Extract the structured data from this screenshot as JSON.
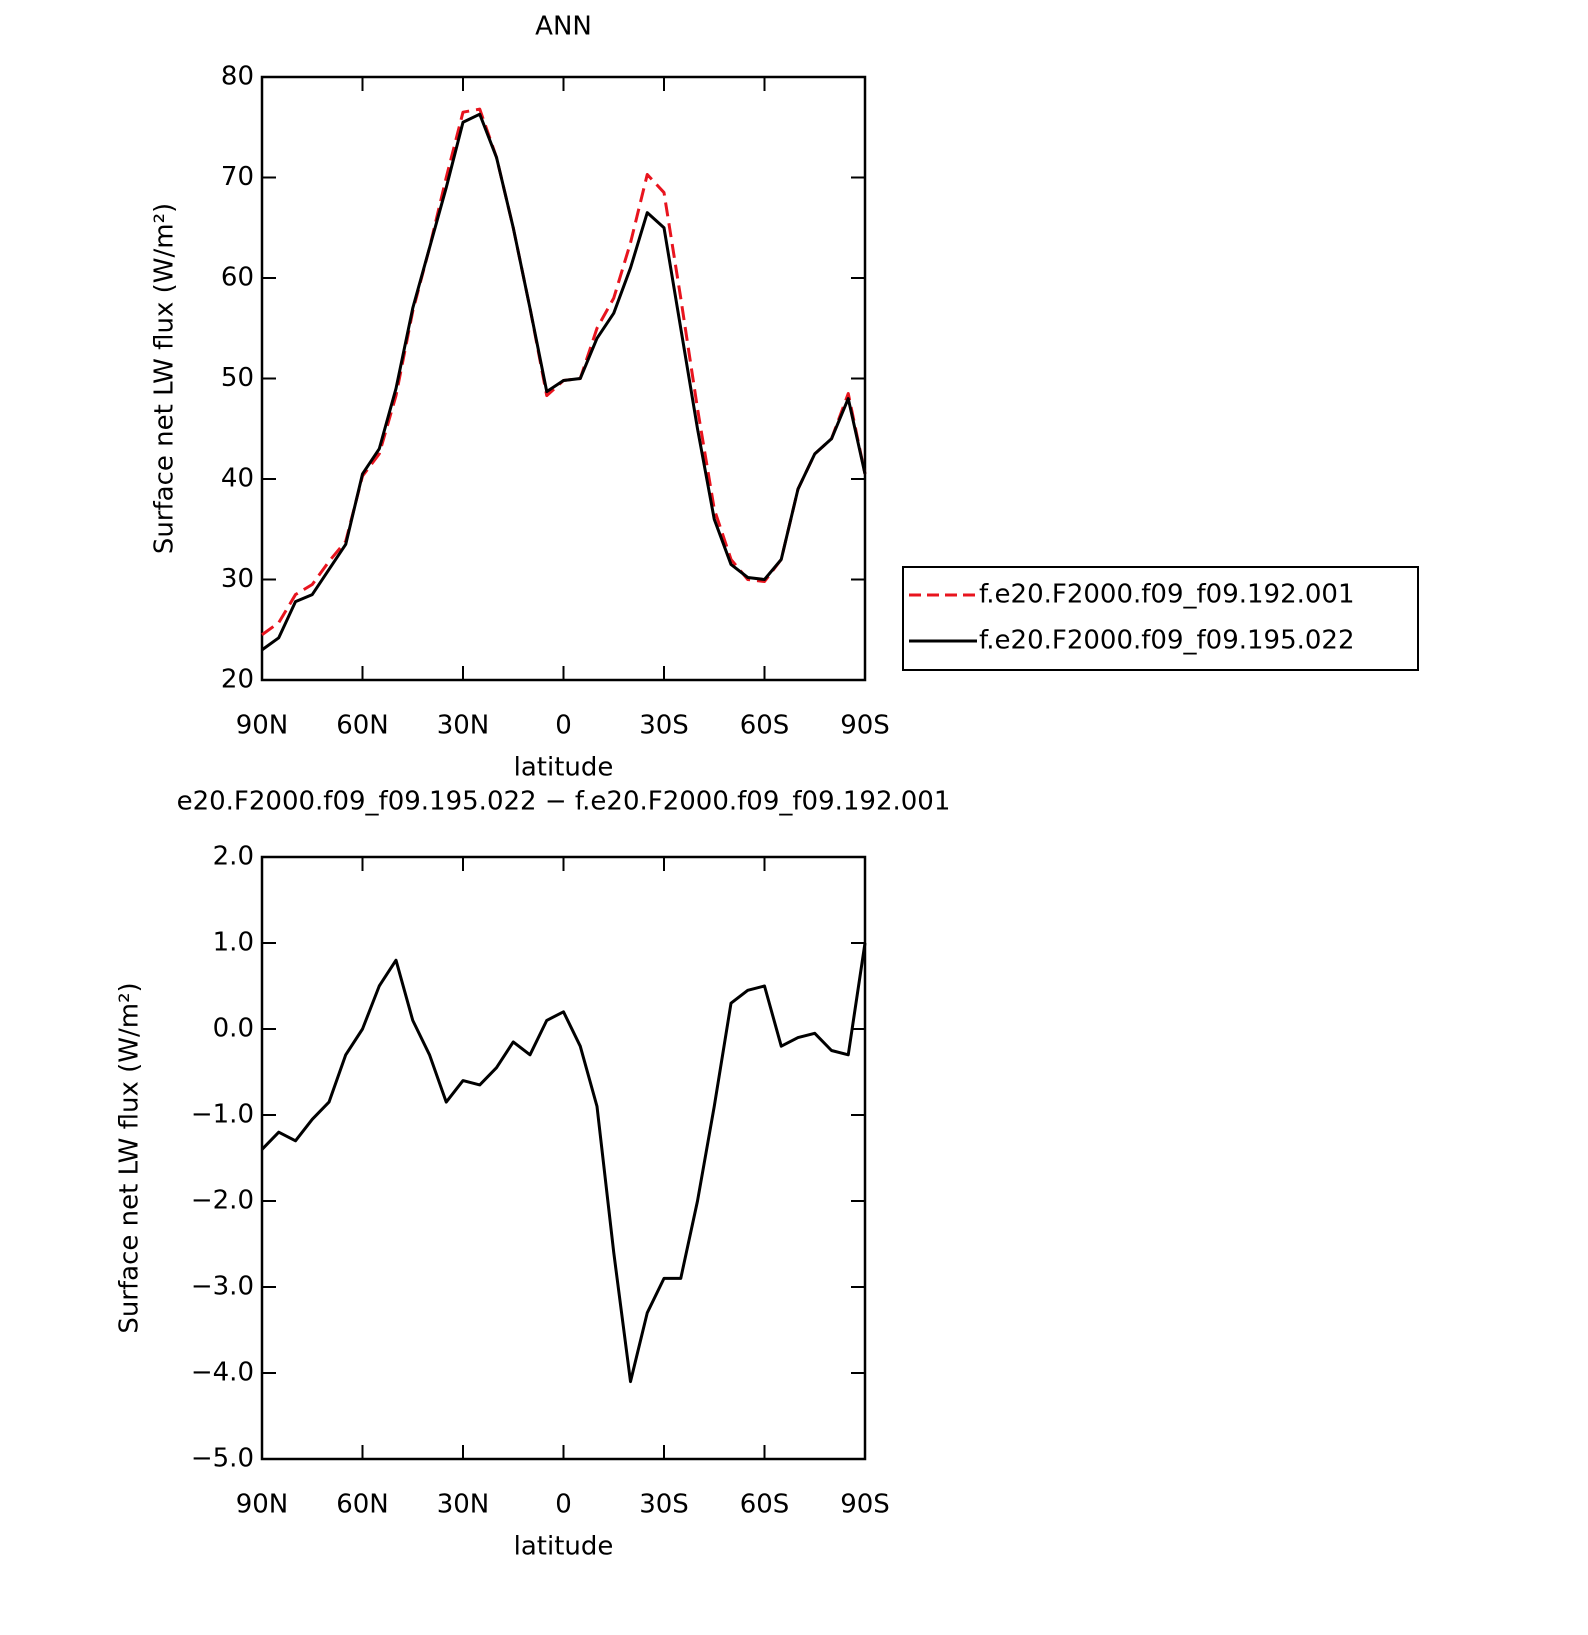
{
  "chart_data": [
    {
      "type": "line",
      "title": "ANN",
      "x_label": "latitude",
      "y_label": "Surface net LW flux (W/m²)",
      "x": [
        90,
        85,
        80,
        75,
        70,
        65,
        60,
        55,
        50,
        45,
        40,
        35,
        30,
        25,
        20,
        15,
        10,
        5,
        0,
        -5,
        -10,
        -15,
        -20,
        -25,
        -30,
        -35,
        -40,
        -45,
        -50,
        -55,
        -60,
        -65,
        -70,
        -75,
        -80,
        -85,
        -90
      ],
      "xlim": [
        90,
        -90
      ],
      "xticks": [
        {
          "value": 90,
          "label": "90N"
        },
        {
          "value": 60,
          "label": "60N"
        },
        {
          "value": 30,
          "label": "30N"
        },
        0,
        {
          "value": -30,
          "label": "30S"
        },
        {
          "value": -60,
          "label": "60S"
        },
        {
          "value": -90,
          "label": "90S"
        }
      ],
      "ylim": [
        20,
        80
      ],
      "yticks": [
        20,
        30,
        40,
        50,
        60,
        70,
        80
      ],
      "legend": "right",
      "series": [
        {
          "name": "f.e20.F2000.f09_f09.192.001",
          "color": "#e8141e",
          "line_style": "dashed",
          "values": [
            24.5,
            25.7,
            28.5,
            29.5,
            31.8,
            33.8,
            40.3,
            42.5,
            48.3,
            56.7,
            63,
            70,
            76.5,
            76.8,
            72,
            65,
            57,
            48.3,
            49.8,
            50,
            55,
            58,
            63.5,
            70.3,
            68.5,
            58,
            47,
            37,
            32,
            30,
            29.8,
            32,
            39,
            42.5,
            44,
            48.5,
            40.5
          ]
        },
        {
          "name": "f.e20.F2000.f09_f09.195.022",
          "color": "#000000",
          "line_style": "solid",
          "values": [
            23,
            24.2,
            27.8,
            28.5,
            31,
            33.5,
            40.5,
            43,
            49,
            57,
            63,
            69,
            75.5,
            76.3,
            72,
            65,
            57,
            48.7,
            49.8,
            50,
            54,
            56.5,
            61,
            66.5,
            65,
            55,
            45,
            36,
            31.5,
            30.2,
            30,
            32,
            39,
            42.5,
            44,
            48,
            40.5
          ]
        }
      ]
    },
    {
      "type": "line",
      "title": "e20.F2000.f09_f09.195.022 − f.e20.F2000.f09_f09.192.001",
      "x_label": "latitude",
      "y_label": "Surface net LW flux (W/m²)",
      "x": [
        90,
        85,
        80,
        75,
        70,
        65,
        60,
        55,
        50,
        45,
        40,
        35,
        30,
        25,
        20,
        15,
        10,
        5,
        0,
        -5,
        -10,
        -15,
        -20,
        -25,
        -30,
        -35,
        -40,
        -45,
        -50,
        -55,
        -60,
        -65,
        -70,
        -75,
        -80,
        -85,
        -90
      ],
      "xlim": [
        90,
        -90
      ],
      "xticks": [
        {
          "value": 90,
          "label": "90N"
        },
        {
          "value": 60,
          "label": "60N"
        },
        {
          "value": 30,
          "label": "30N"
        },
        0,
        {
          "value": -30,
          "label": "30S"
        },
        {
          "value": -60,
          "label": "60S"
        },
        {
          "value": -90,
          "label": "90S"
        }
      ],
      "ylim": [
        -5,
        2
      ],
      "yticks": [
        {
          "value": -5,
          "label": "−5.0"
        },
        {
          "value": -4,
          "label": "−4.0"
        },
        {
          "value": -3,
          "label": "−3.0"
        },
        {
          "value": -2,
          "label": "−2.0"
        },
        {
          "value": -1,
          "label": "−1.0"
        },
        {
          "value": 0,
          "label": "0.0"
        },
        {
          "value": 1,
          "label": "1.0"
        },
        {
          "value": 2,
          "label": "2.0"
        }
      ],
      "series": [
        {
          "color": "#000000",
          "line_style": "solid",
          "values": [
            -1.4,
            -1.2,
            -1.3,
            -1.05,
            -0.85,
            -0.3,
            0,
            0.5,
            0.8,
            0.1,
            -0.3,
            -0.85,
            -0.6,
            -0.65,
            -0.45,
            -0.15,
            -0.3,
            0.1,
            0.2,
            -0.2,
            -0.9,
            -2.6,
            -4.1,
            -3.3,
            -2.9,
            -2.9,
            -2,
            -0.9,
            0.3,
            0.45,
            0.5,
            -0.2,
            -0.1,
            -0.05,
            -0.25,
            -0.3,
            1
          ]
        }
      ]
    }
  ]
}
